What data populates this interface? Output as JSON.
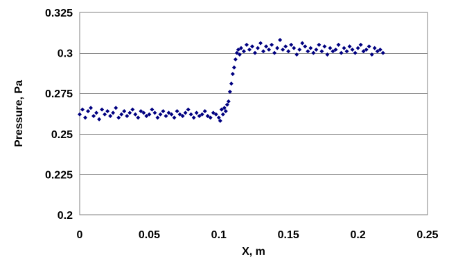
{
  "chart_data": {
    "type": "scatter",
    "title": "",
    "xlabel": "X, m",
    "ylabel": "Pressure, Pa",
    "xlim": [
      0,
      0.25
    ],
    "ylim": [
      0.2,
      0.325
    ],
    "xticks": [
      "0",
      "0.05",
      "0.1",
      "0.15",
      "0.2",
      "0.25"
    ],
    "yticks": [
      "0.2",
      "0.225",
      "0.25",
      "0.275",
      "0.3",
      "0.325"
    ],
    "grid": "horizontal",
    "legend": "none",
    "marker": "diamond",
    "marker_color": "#000080",
    "series": [
      {
        "x": [
          0.0,
          0.002,
          0.004,
          0.006,
          0.008,
          0.01,
          0.012,
          0.014,
          0.016,
          0.018,
          0.02,
          0.022,
          0.024,
          0.026,
          0.028,
          0.03,
          0.032,
          0.034,
          0.036,
          0.038,
          0.04,
          0.042,
          0.044,
          0.046,
          0.048,
          0.05,
          0.052,
          0.054,
          0.056,
          0.058,
          0.06,
          0.062,
          0.064,
          0.066,
          0.068,
          0.07,
          0.072,
          0.074,
          0.076,
          0.078,
          0.08,
          0.082,
          0.084,
          0.086,
          0.088,
          0.09,
          0.092,
          0.094,
          0.096,
          0.098,
          0.1,
          0.101,
          0.102,
          0.103,
          0.104,
          0.105,
          0.106,
          0.107,
          0.108,
          0.109,
          0.11,
          0.111,
          0.112,
          0.113,
          0.114,
          0.115,
          0.116,
          0.118,
          0.12,
          0.122,
          0.124,
          0.126,
          0.128,
          0.13,
          0.132,
          0.134,
          0.136,
          0.138,
          0.14,
          0.142,
          0.144,
          0.146,
          0.148,
          0.15,
          0.152,
          0.154,
          0.156,
          0.158,
          0.16,
          0.162,
          0.164,
          0.166,
          0.168,
          0.17,
          0.172,
          0.174,
          0.176,
          0.178,
          0.18,
          0.182,
          0.184,
          0.186,
          0.188,
          0.19,
          0.192,
          0.194,
          0.196,
          0.198,
          0.2,
          0.202,
          0.204,
          0.206,
          0.208,
          0.21,
          0.212,
          0.214,
          0.216,
          0.218
        ],
        "y": [
          0.262,
          0.265,
          0.26,
          0.264,
          0.266,
          0.261,
          0.263,
          0.259,
          0.265,
          0.262,
          0.264,
          0.261,
          0.263,
          0.266,
          0.26,
          0.262,
          0.264,
          0.261,
          0.263,
          0.265,
          0.262,
          0.26,
          0.264,
          0.263,
          0.261,
          0.262,
          0.265,
          0.263,
          0.26,
          0.262,
          0.264,
          0.261,
          0.263,
          0.262,
          0.26,
          0.264,
          0.262,
          0.261,
          0.263,
          0.265,
          0.262,
          0.26,
          0.263,
          0.261,
          0.262,
          0.264,
          0.261,
          0.26,
          0.263,
          0.262,
          0.26,
          0.258,
          0.265,
          0.262,
          0.266,
          0.264,
          0.268,
          0.27,
          0.276,
          0.281,
          0.287,
          0.291,
          0.296,
          0.3,
          0.302,
          0.299,
          0.303,
          0.301,
          0.305,
          0.302,
          0.304,
          0.3,
          0.303,
          0.306,
          0.301,
          0.304,
          0.302,
          0.305,
          0.3,
          0.303,
          0.308,
          0.302,
          0.304,
          0.301,
          0.305,
          0.303,
          0.299,
          0.302,
          0.306,
          0.304,
          0.301,
          0.303,
          0.3,
          0.302,
          0.305,
          0.301,
          0.304,
          0.299,
          0.303,
          0.301,
          0.302,
          0.305,
          0.3,
          0.303,
          0.301,
          0.304,
          0.302,
          0.3,
          0.303,
          0.305,
          0.301,
          0.302,
          0.304,
          0.299,
          0.303,
          0.301,
          0.302,
          0.3
        ]
      }
    ]
  }
}
